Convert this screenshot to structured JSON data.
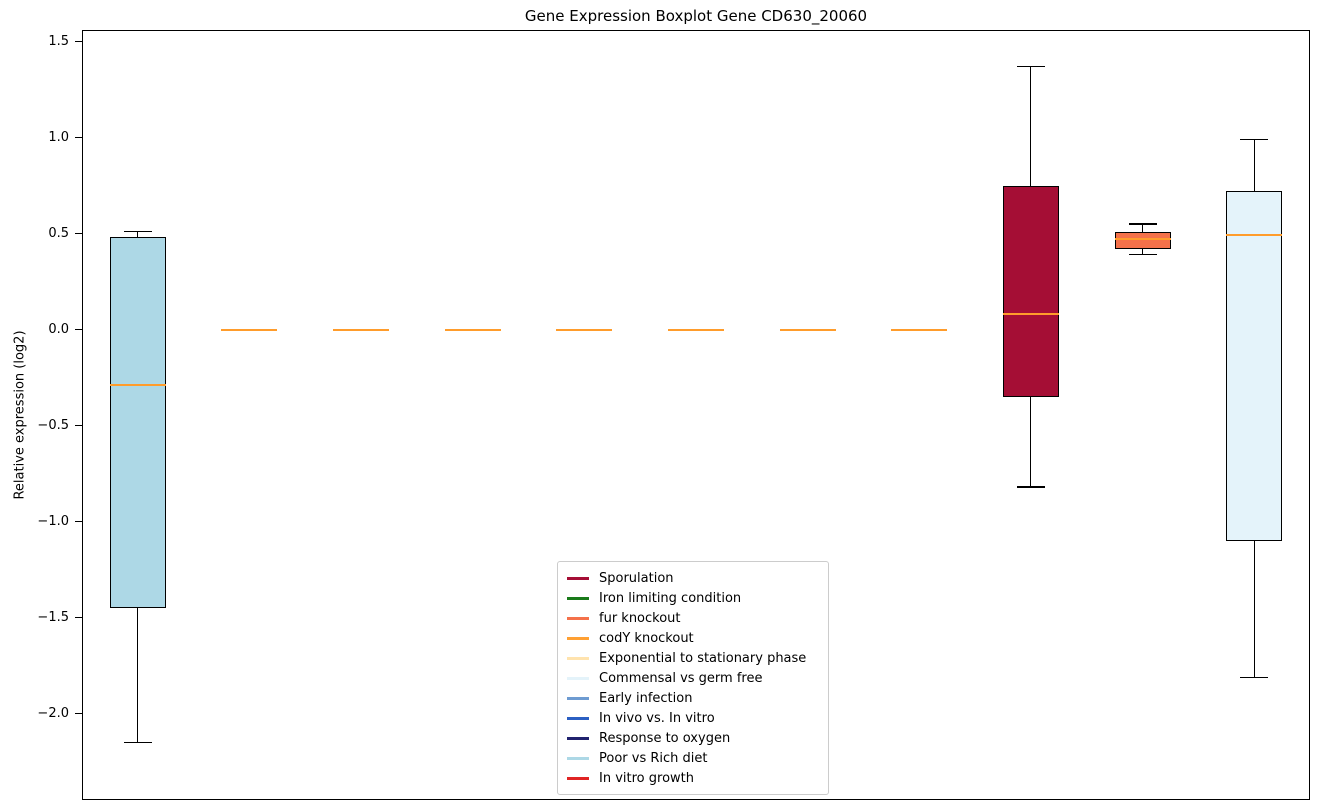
{
  "title": "Gene Expression Boxplot Gene CD630_20060",
  "ylabel": "Relative expression (log2)",
  "chart_data": {
    "type": "boxplot",
    "title": "Gene Expression Boxplot Gene CD630_20060",
    "ylabel": "Relative expression (log2)",
    "ylim": [
      -2.45,
      1.56
    ],
    "grid": false,
    "legend_position": "lower center",
    "median_color": "#FF9C2B",
    "yticks": [
      {
        "value": 1.5,
        "label": "1.5"
      },
      {
        "value": 1.0,
        "label": "1.0"
      },
      {
        "value": 0.5,
        "label": "0.5"
      },
      {
        "value": 0.0,
        "label": "0.0"
      },
      {
        "value": -0.5,
        "label": "−0.5"
      },
      {
        "value": -1.0,
        "label": "−1.0"
      },
      {
        "value": -1.5,
        "label": "−1.5"
      },
      {
        "value": -2.0,
        "label": "−2.0"
      }
    ],
    "series": [
      {
        "name": "Poor vs Rich diet",
        "color": "#ADD8E6",
        "whislo": -2.15,
        "q1": -1.45,
        "med": -0.29,
        "q3": 0.48,
        "whishi": 0.51
      },
      {
        "name": "Iron limiting condition",
        "color": "#1A7A1A",
        "whislo": 0.0,
        "q1": 0.0,
        "med": 0.0,
        "q3": 0.0,
        "whishi": 0.0
      },
      {
        "name": "codY knockout",
        "color": "#FFA033",
        "whislo": 0.0,
        "q1": 0.0,
        "med": 0.0,
        "q3": 0.0,
        "whishi": 0.0
      },
      {
        "name": "Exponential to stationary phase",
        "color": "#FFE3AE",
        "whislo": 0.0,
        "q1": 0.0,
        "med": 0.0,
        "q3": 0.0,
        "whishi": 0.0
      },
      {
        "name": "Early infection",
        "color": "#6E9BD1",
        "whislo": 0.0,
        "q1": 0.0,
        "med": 0.0,
        "q3": 0.0,
        "whishi": 0.0
      },
      {
        "name": "In vivo vs. In vitro",
        "color": "#2B5FC2",
        "whislo": 0.0,
        "q1": 0.0,
        "med": 0.0,
        "q3": 0.0,
        "whishi": 0.0
      },
      {
        "name": "Response to oxygen",
        "color": "#20226E",
        "whislo": 0.0,
        "q1": 0.0,
        "med": 0.0,
        "q3": 0.0,
        "whishi": 0.0
      },
      {
        "name": "In vitro growth",
        "color": "#E02424",
        "whislo": 0.0,
        "q1": 0.0,
        "med": 0.0,
        "q3": 0.0,
        "whishi": 0.0
      },
      {
        "name": "Sporulation",
        "color": "#A50E35",
        "whislo": -0.82,
        "q1": -0.35,
        "med": 0.08,
        "q3": 0.75,
        "whishi": 1.37
      },
      {
        "name": "fur knockout",
        "color": "#F4714A",
        "whislo": 0.39,
        "q1": 0.42,
        "med": 0.47,
        "q3": 0.51,
        "whishi": 0.55
      },
      {
        "name": "Commensal vs germ free",
        "color": "#E4F3FA",
        "whislo": -1.81,
        "q1": -1.1,
        "med": 0.49,
        "q3": 0.72,
        "whishi": 0.99
      }
    ],
    "legend": [
      {
        "label": "Sporulation",
        "color": "#A50E35"
      },
      {
        "label": "Iron limiting condition",
        "color": "#1A7A1A"
      },
      {
        "label": "fur knockout",
        "color": "#F4714A"
      },
      {
        "label": "codY knockout",
        "color": "#FFA033"
      },
      {
        "label": "Exponential to stationary phase",
        "color": "#FFE3AE"
      },
      {
        "label": "Commensal vs germ free",
        "color": "#E4F3FA"
      },
      {
        "label": "Early infection",
        "color": "#6E9BD1"
      },
      {
        "label": "In vivo vs. In vitro",
        "color": "#2B5FC2"
      },
      {
        "label": "Response to oxygen",
        "color": "#20226E"
      },
      {
        "label": "Poor vs Rich diet",
        "color": "#ADD8E6"
      },
      {
        "label": "In vitro growth",
        "color": "#E02424"
      }
    ]
  }
}
